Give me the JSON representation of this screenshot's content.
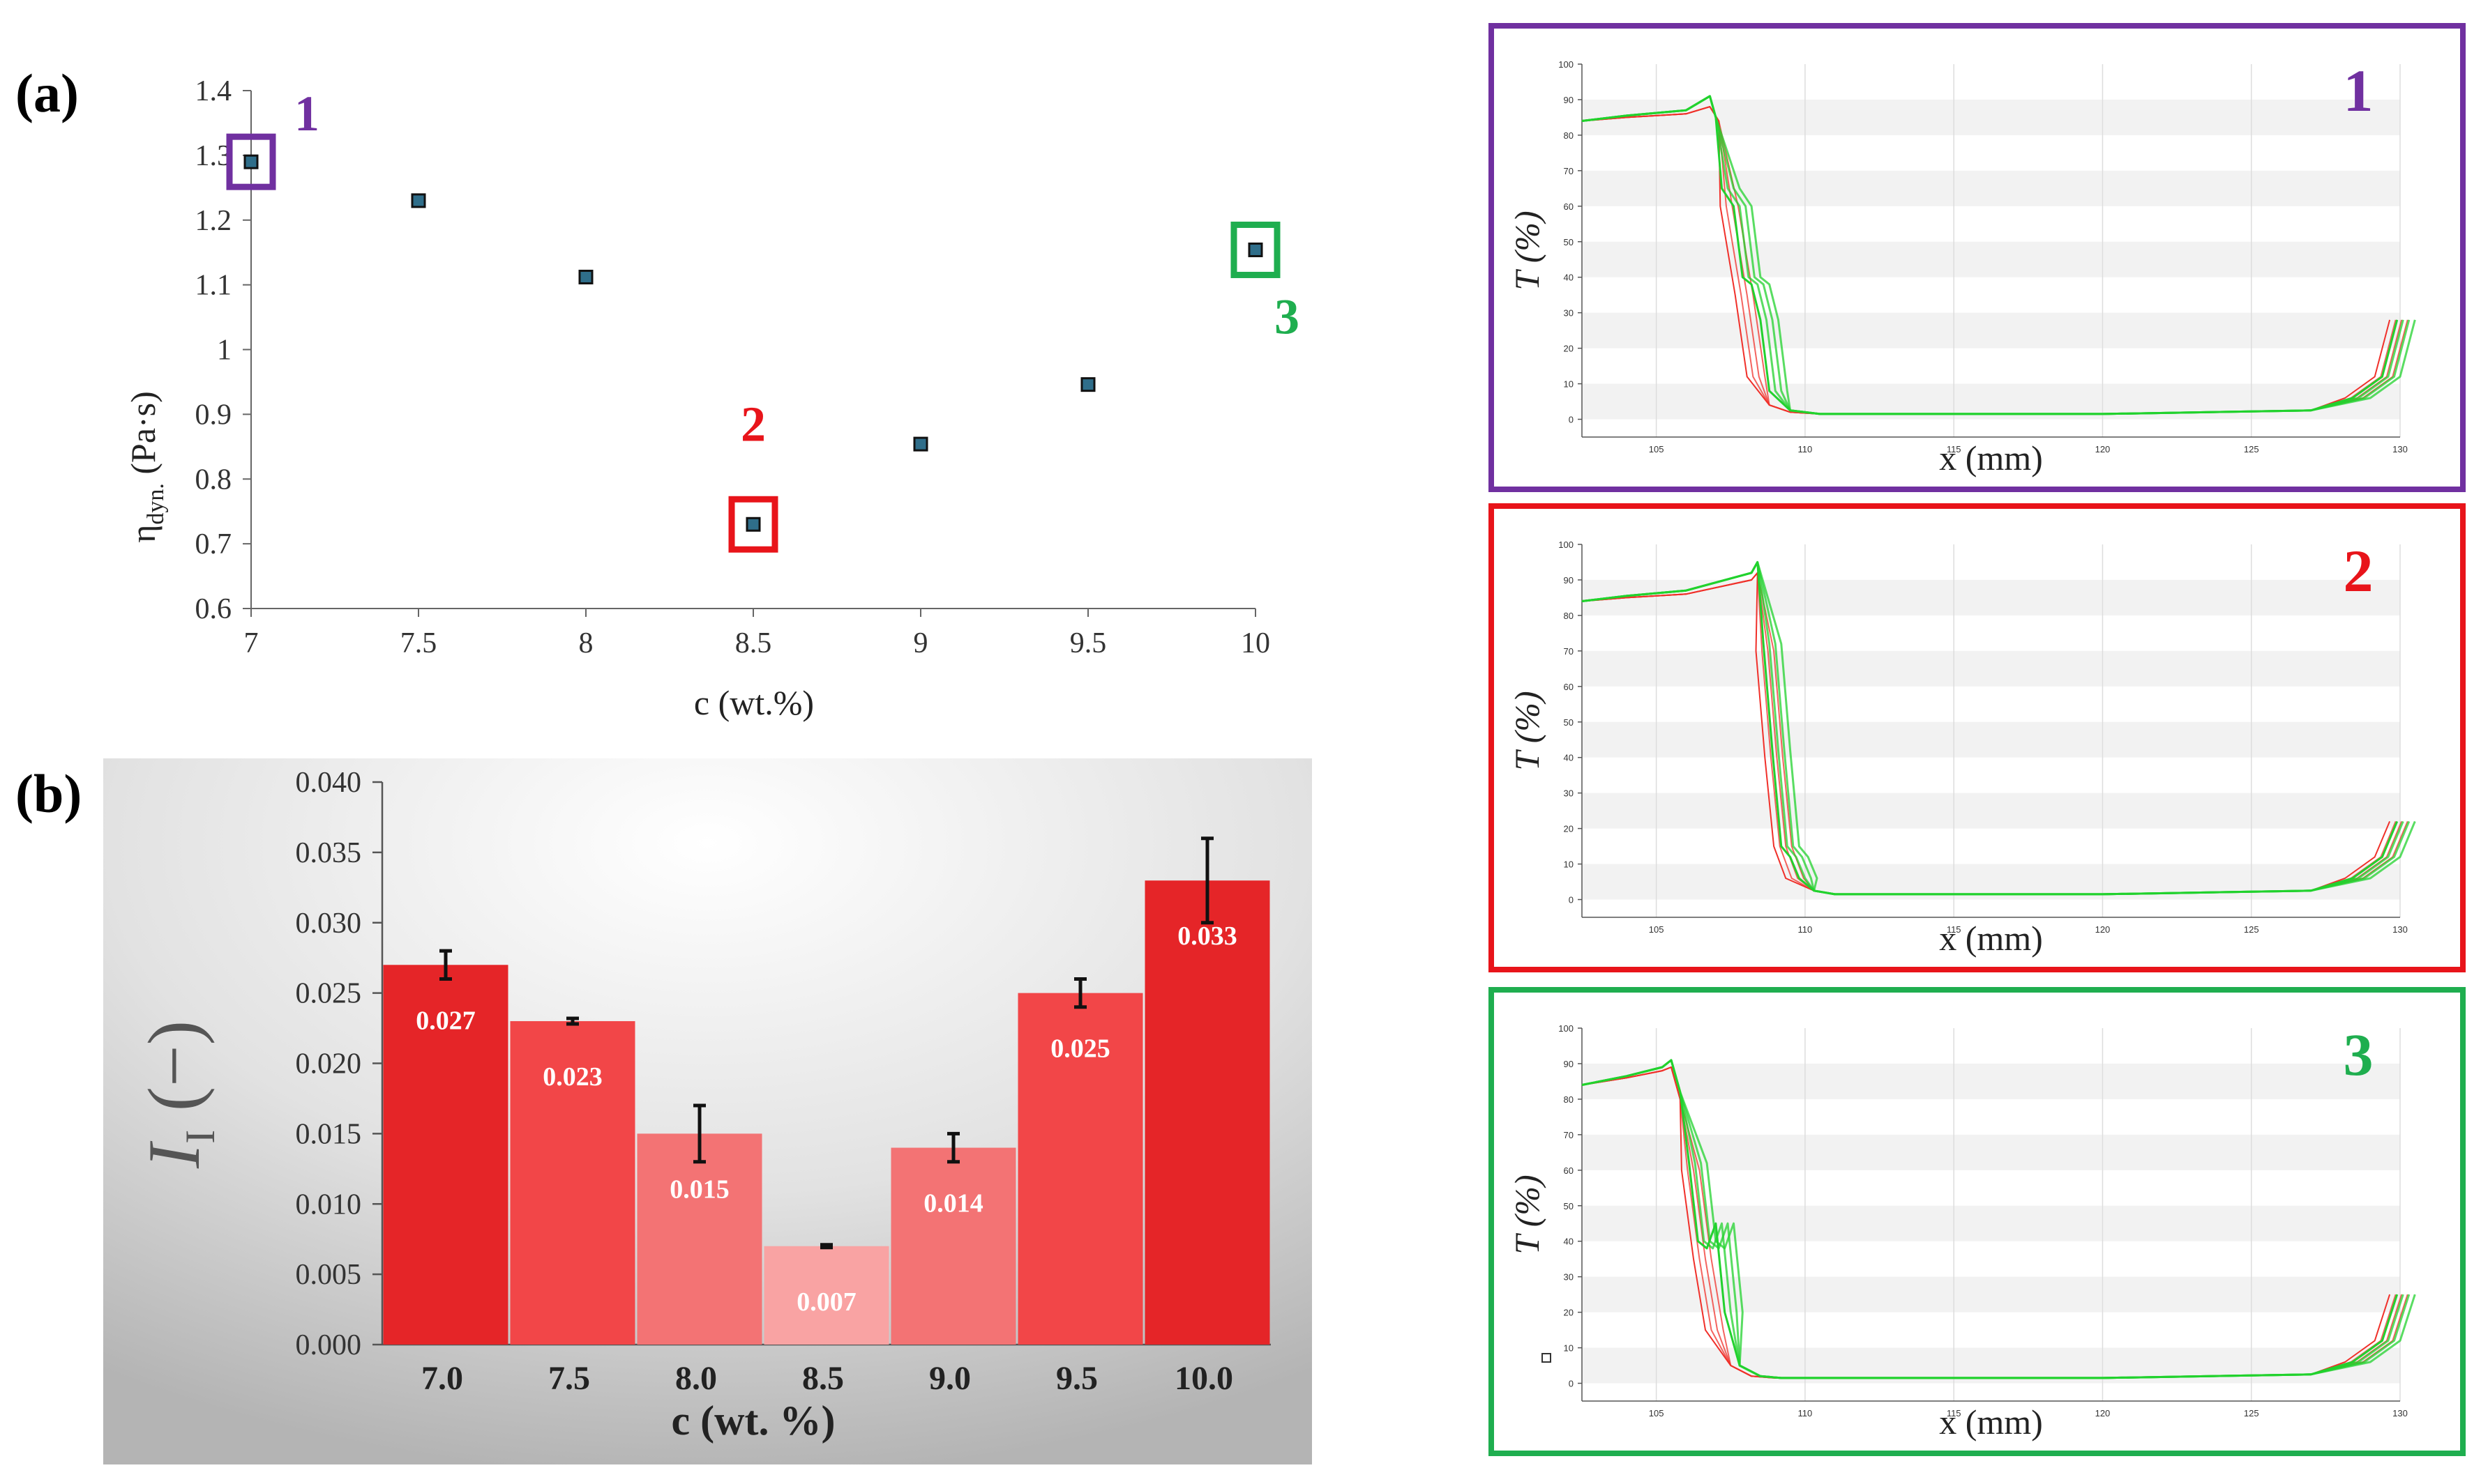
{
  "chart_data": [
    {
      "panel_label": "(a)",
      "type": "scatter",
      "x": [
        7,
        7.5,
        8,
        8.5,
        9,
        9.5,
        10
      ],
      "y": [
        1.29,
        1.23,
        1.112,
        0.73,
        0.854,
        0.946,
        1.154
      ],
      "xlabel": "c (wt.%)",
      "ylabel_main": "η",
      "ylabel_sub": "dyn.",
      "ylabel_unit": " (Pa·s)",
      "xlim": [
        7,
        10
      ],
      "ylim": [
        0.6,
        1.4
      ],
      "xticks": [
        "7",
        "7.5",
        "8",
        "8.5",
        "9",
        "9.5",
        "10"
      ],
      "yticks": [
        "0.6",
        "0.7",
        "0.8",
        "0.9",
        "1",
        "1.1",
        "1.2",
        "1.3",
        "1.4"
      ],
      "markers": [
        {
          "label": "1",
          "x": 7,
          "y": 1.29,
          "color": "#7030a0"
        },
        {
          "label": "2",
          "x": 8.5,
          "y": 0.73,
          "color": "#e8141a"
        },
        {
          "label": "3",
          "x": 10,
          "y": 1.154,
          "color": "#1fae4f"
        }
      ]
    },
    {
      "panel_label": "(b)",
      "type": "bar",
      "categories": [
        "7.0",
        "7.5",
        "8.0",
        "8.5",
        "9.0",
        "9.5",
        "10.0"
      ],
      "values": [
        0.027,
        0.023,
        0.015,
        0.007,
        0.014,
        0.025,
        0.033
      ],
      "value_labels": [
        "0.027",
        "0.023",
        "0.015",
        "0.007",
        "0.014",
        "0.025",
        "0.033"
      ],
      "error_low": [
        0.026,
        0.0228,
        0.013,
        0.0069,
        0.013,
        0.024,
        0.03
      ],
      "error_high": [
        0.028,
        0.0232,
        0.017,
        0.0071,
        0.015,
        0.026,
        0.036
      ],
      "bar_colors": [
        "#e52528",
        "#f24648",
        "#f37374",
        "#f9a3a3",
        "#f37374",
        "#f24648",
        "#e52528"
      ],
      "xlabel": "c (wt. %)",
      "ylabel_main": "I",
      "ylabel_sub": "I",
      "ylabel_unit": " (−)",
      "ylim": [
        0,
        0.04
      ],
      "yticks": [
        "0.000",
        "0.005",
        "0.010",
        "0.015",
        "0.020",
        "0.025",
        "0.030",
        "0.035",
        "0.040"
      ]
    },
    {
      "panel_label": "1",
      "type": "line",
      "frame_color": "#7030a0",
      "xlabel": "x (mm)",
      "ylabel": "T (%)",
      "xlim": [
        102.5,
        130
      ],
      "ylim": [
        -5,
        100
      ],
      "xticks": [
        "105",
        "110",
        "115",
        "120",
        "125",
        "130"
      ],
      "yticks": [
        "0",
        "10",
        "20",
        "30",
        "40",
        "50",
        "60",
        "70",
        "80",
        "90",
        "100"
      ],
      "series": [
        {
          "name": "red",
          "x": [
            102.5,
            104,
            106,
            106.8,
            107.1,
            107.5,
            108.0,
            108.4,
            108.8,
            109.5,
            110.5,
            120,
            127,
            128.5,
            129.5,
            130
          ],
          "y": [
            84,
            85,
            86,
            88,
            84,
            60,
            35,
            12,
            4,
            2,
            1.5,
            1.5,
            2.5,
            6,
            12,
            28
          ]
        },
        {
          "name": "green",
          "x": [
            102.5,
            104,
            106,
            106.8,
            107.0,
            107.3,
            107.7,
            108.0,
            108.3,
            108.6,
            108.9,
            109.5,
            110.5,
            120,
            127,
            128.5,
            129.5,
            130
          ],
          "y": [
            84,
            85.5,
            87,
            91,
            85,
            65,
            60,
            40,
            38,
            28,
            8,
            2.5,
            1.5,
            1.5,
            2.5,
            6,
            12,
            28
          ]
        }
      ]
    },
    {
      "panel_label": "2",
      "type": "line",
      "frame_color": "#e8141a",
      "xlabel": "x (mm)",
      "ylabel": "T (%)",
      "xlim": [
        102.5,
        130
      ],
      "ylim": [
        -5,
        100
      ],
      "xticks": [
        "105",
        "110",
        "115",
        "120",
        "125",
        "130"
      ],
      "yticks": [
        "0",
        "10",
        "20",
        "30",
        "40",
        "50",
        "60",
        "70",
        "80",
        "90",
        "100"
      ],
      "series": [
        {
          "name": "red",
          "x": [
            102.5,
            104,
            106,
            108.2,
            108.4,
            108.7,
            109.0,
            109.3,
            109.7,
            110.3,
            111,
            120,
            127,
            128.5,
            129.5,
            130
          ],
          "y": [
            84,
            85,
            86,
            90,
            92,
            70,
            40,
            15,
            6,
            2.5,
            1.5,
            1.5,
            2.5,
            6,
            12,
            22
          ]
        },
        {
          "name": "green",
          "x": [
            102.5,
            104,
            106,
            108.2,
            108.4,
            108.7,
            109.0,
            109.3,
            109.6,
            109.9,
            110.3,
            111,
            120,
            127,
            128.5,
            129.5,
            130
          ],
          "y": [
            84,
            85.5,
            87,
            92,
            95,
            72,
            42,
            15,
            12,
            6,
            2.5,
            1.5,
            1.5,
            2.5,
            6,
            12,
            22
          ]
        }
      ]
    },
    {
      "panel_label": "3",
      "type": "line",
      "frame_color": "#1fae4f",
      "xlabel": "x (mm)",
      "ylabel": "T (%)",
      "xlim": [
        102.5,
        130
      ],
      "ylim": [
        -5,
        100
      ],
      "xticks": [
        "105",
        "110",
        "115",
        "120",
        "125",
        "130"
      ],
      "yticks": [
        "0",
        "10",
        "20",
        "30",
        "40",
        "50",
        "60",
        "70",
        "80",
        "90",
        "100"
      ],
      "series": [
        {
          "name": "red",
          "x": [
            102.5,
            104,
            105.2,
            105.5,
            105.8,
            106.2,
            106.6,
            107.0,
            107.5,
            108.2,
            109,
            120,
            127,
            128.5,
            129.5,
            130
          ],
          "y": [
            84,
            86,
            88,
            89,
            80,
            60,
            35,
            15,
            5,
            2,
            1.5,
            1.5,
            2.5,
            6,
            12,
            25
          ]
        },
        {
          "name": "green",
          "x": [
            102.5,
            104,
            105.2,
            105.5,
            105.8,
            106.2,
            106.5,
            106.8,
            107.1,
            107.4,
            107.8,
            108.5,
            109.2,
            120,
            127,
            128.5,
            129.5,
            130
          ],
          "y": [
            84,
            86.5,
            89,
            91,
            82,
            62,
            40,
            38,
            45,
            20,
            5,
            2,
            1.5,
            1.5,
            2.5,
            6,
            12,
            25
          ]
        }
      ]
    }
  ]
}
